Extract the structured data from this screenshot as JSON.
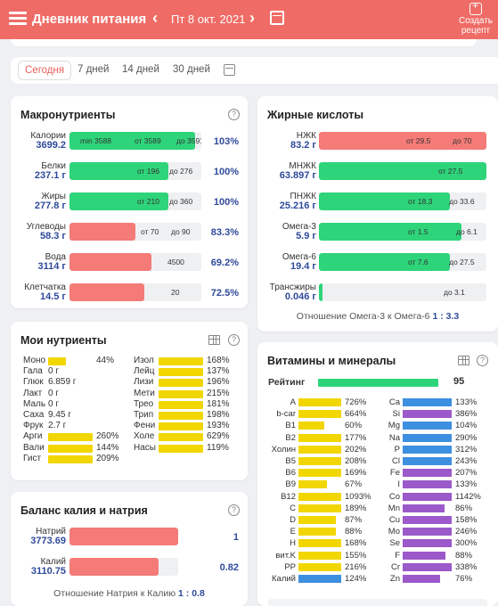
{
  "header": {
    "title": "Дневник питания",
    "date": "Пт 8 окт. 2021",
    "create_line1": "Создать",
    "create_line2": "рецепт",
    "prev": "‹",
    "next": "›"
  },
  "periods": [
    "Сегодня",
    "7 дней",
    "14 дней",
    "30 дней"
  ],
  "colors": {
    "header": "#ef6c66",
    "green": "#2ed47a",
    "red": "#f47b78",
    "yellow": "#f2d600",
    "blue": "#3d8fe0",
    "purple": "#9b59c9"
  },
  "macros": {
    "title": "Макронутриенты",
    "rows": [
      {
        "name": "Калории",
        "value": "3699.2",
        "fill": 0.95,
        "color": "green",
        "marks": [
          {
            "t": "min 3588",
            "x": 12
          },
          {
            "t": "от 3589",
            "x": 73
          },
          {
            "t": "до 3591",
            "x": 120
          }
        ],
        "pct": "103%"
      },
      {
        "name": "Белки",
        "value": "237.1 г",
        "fill": 0.75,
        "color": "green",
        "marks": [
          {
            "t": "от 196",
            "x": 76
          },
          {
            "t": "до 276",
            "x": 112
          }
        ],
        "pct": "100%"
      },
      {
        "name": "Жиры",
        "value": "277.8 г",
        "fill": 0.75,
        "color": "green",
        "marks": [
          {
            "t": "от 210",
            "x": 76
          },
          {
            "t": "до 360",
            "x": 112
          }
        ],
        "pct": "100%"
      },
      {
        "name": "Углеводы",
        "value": "58.3 г",
        "fill": 0.5,
        "color": "red",
        "marks": [
          {
            "t": "от 70",
            "x": 80
          },
          {
            "t": "до 90",
            "x": 114
          }
        ],
        "pct": "83.3%"
      },
      {
        "name": "Вода",
        "value": "3114 г",
        "fill": 0.62,
        "color": "red",
        "marks": [
          {
            "t": "4500",
            "x": 110
          }
        ],
        "pct": "69.2%"
      },
      {
        "name": "Клетчатка",
        "value": "14.5 г",
        "fill": 0.57,
        "color": "red",
        "marks": [
          {
            "t": "20",
            "x": 114
          }
        ],
        "pct": "72.5%"
      }
    ]
  },
  "fatty": {
    "title": "Жирные кислоты",
    "rows": [
      {
        "name": "НЖК",
        "value": "83.2 г",
        "fill": 1.0,
        "color": "red",
        "marks": [
          {
            "t": "от 29.5",
            "x": 98
          },
          {
            "t": "до 70",
            "x": 150
          }
        ]
      },
      {
        "name": "МНЖК",
        "value": "63.897 г",
        "fill": 1.0,
        "color": "green",
        "marks": [
          {
            "t": "от 27.5",
            "x": 134
          }
        ]
      },
      {
        "name": "ПНЖК",
        "value": "25.216 г",
        "fill": 0.78,
        "color": "green",
        "marks": [
          {
            "t": "от 18.3",
            "x": 100
          },
          {
            "t": "до 33.6",
            "x": 146
          }
        ]
      },
      {
        "name": "Омега-3",
        "value": "5.9 г",
        "fill": 0.85,
        "color": "green",
        "marks": [
          {
            "t": "от 1.5",
            "x": 100
          },
          {
            "t": "до 6.1",
            "x": 154
          }
        ]
      },
      {
        "name": "Омега-6",
        "value": "19.4 г",
        "fill": 0.78,
        "color": "green",
        "marks": [
          {
            "t": "от 7.6",
            "x": 100
          },
          {
            "t": "до 27.5",
            "x": 146
          }
        ]
      },
      {
        "name": "Трансжиры",
        "value": "0.046 г",
        "fill": 0.02,
        "color": "green",
        "marks": [
          {
            "t": "до 3.1",
            "x": 140
          }
        ]
      }
    ],
    "ratio_label": "Отношение Омега-3 к Омега-6",
    "ratio_value": "1 : 3.3"
  },
  "mynut": {
    "title": "Мои нутриенты",
    "left": [
      {
        "n": "Моно",
        "v": "44%",
        "f": 0.4,
        "c": "yellow",
        "bar": true
      },
      {
        "n": "Гала",
        "v": "0 г",
        "bar": false
      },
      {
        "n": "Глюк",
        "v": "6.859 г",
        "bar": false
      },
      {
        "n": "Лакт",
        "v": "0 г",
        "bar": false
      },
      {
        "n": "Маль",
        "v": "0 г",
        "bar": false
      },
      {
        "n": "Саха",
        "v": "9.45 г",
        "bar": false
      },
      {
        "n": "Фрук",
        "v": "2.7 г",
        "bar": false
      },
      {
        "n": "Арги",
        "v": "260%",
        "f": 1,
        "c": "yellow",
        "bar": true
      },
      {
        "n": "Вали",
        "v": "144%",
        "f": 1,
        "c": "yellow",
        "bar": true
      },
      {
        "n": "Гист",
        "v": "209%",
        "f": 1,
        "c": "yellow",
        "bar": true
      }
    ],
    "right": [
      {
        "n": "Изол",
        "v": "168%"
      },
      {
        "n": "Лейц",
        "v": "137%"
      },
      {
        "n": "Лизи",
        "v": "196%"
      },
      {
        "n": "Мети",
        "v": "215%"
      },
      {
        "n": "Трео",
        "v": "181%"
      },
      {
        "n": "Трип",
        "v": "198%"
      },
      {
        "n": "Фени",
        "v": "193%"
      },
      {
        "n": "Холе",
        "v": "629%"
      },
      {
        "n": "Насы",
        "v": "119%"
      }
    ]
  },
  "vitamins": {
    "title": "Витамины и минералы",
    "rating_label": "Рейтинг",
    "rating": "95",
    "rating_fill": 0.95,
    "left": [
      {
        "n": "A",
        "v": "726%",
        "f": 1,
        "c": "yellow"
      },
      {
        "n": "b-car",
        "v": "664%",
        "f": 1,
        "c": "yellow"
      },
      {
        "n": "B1",
        "v": "60%",
        "f": 0.6,
        "c": "yellow"
      },
      {
        "n": "B2",
        "v": "177%",
        "f": 1,
        "c": "yellow"
      },
      {
        "n": "Холин",
        "v": "202%",
        "f": 1,
        "c": "yellow"
      },
      {
        "n": "B5",
        "v": "208%",
        "f": 1,
        "c": "yellow"
      },
      {
        "n": "B6",
        "v": "169%",
        "f": 1,
        "c": "yellow"
      },
      {
        "n": "B9",
        "v": "67%",
        "f": 0.67,
        "c": "yellow"
      },
      {
        "n": "B12",
        "v": "1093%",
        "f": 1,
        "c": "yellow"
      },
      {
        "n": "C",
        "v": "189%",
        "f": 1,
        "c": "yellow"
      },
      {
        "n": "D",
        "v": "87%",
        "f": 0.87,
        "c": "yellow"
      },
      {
        "n": "E",
        "v": "88%",
        "f": 0.88,
        "c": "yellow"
      },
      {
        "n": "H",
        "v": "168%",
        "f": 1,
        "c": "yellow"
      },
      {
        "n": "вит.K",
        "v": "155%",
        "f": 1,
        "c": "yellow"
      },
      {
        "n": "PP",
        "v": "216%",
        "f": 1,
        "c": "yellow"
      },
      {
        "n": "Калий",
        "v": "124%",
        "f": 1,
        "c": "blue"
      }
    ],
    "right": [
      {
        "n": "Ca",
        "v": "133%",
        "f": 1,
        "c": "blue"
      },
      {
        "n": "Si",
        "v": "386%",
        "f": 1,
        "c": "purple"
      },
      {
        "n": "Mg",
        "v": "104%",
        "f": 1,
        "c": "blue"
      },
      {
        "n": "Na",
        "v": "290%",
        "f": 1,
        "c": "blue"
      },
      {
        "n": "P",
        "v": "312%",
        "f": 1,
        "c": "blue"
      },
      {
        "n": "Cl",
        "v": "243%",
        "f": 1,
        "c": "blue"
      },
      {
        "n": "Fe",
        "v": "207%",
        "f": 1,
        "c": "purple"
      },
      {
        "n": "I",
        "v": "133%",
        "f": 1,
        "c": "purple"
      },
      {
        "n": "Co",
        "v": "1142%",
        "f": 1,
        "c": "purple"
      },
      {
        "n": "Mn",
        "v": "86%",
        "f": 0.86,
        "c": "purple"
      },
      {
        "n": "Cu",
        "v": "158%",
        "f": 1,
        "c": "purple"
      },
      {
        "n": "Mo",
        "v": "246%",
        "f": 1,
        "c": "purple"
      },
      {
        "n": "Se",
        "v": "300%",
        "f": 1,
        "c": "purple"
      },
      {
        "n": "F",
        "v": "88%",
        "f": 0.88,
        "c": "purple"
      },
      {
        "n": "Cr",
        "v": "338%",
        "f": 1,
        "c": "purple"
      },
      {
        "n": "Zn",
        "v": "76%",
        "f": 0.76,
        "c": "purple"
      }
    ]
  },
  "balance": {
    "title": "Баланс калия и натрия",
    "rows": [
      {
        "name": "Натрий",
        "value": "3773.69",
        "fill": 1.0,
        "pct": "1"
      },
      {
        "name": "Калий",
        "value": "3110.75",
        "fill": 0.82,
        "pct": "0.82"
      }
    ],
    "ratio_label": "Отношение Натрия к Калию",
    "ratio_value": "1 : 0.8"
  }
}
